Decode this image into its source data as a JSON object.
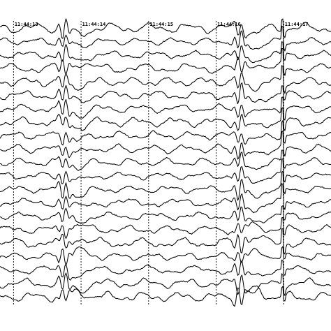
{
  "chart_data": {
    "type": "line",
    "title": "",
    "xlabel": "",
    "ylabel": "",
    "grid": false,
    "legend": "none",
    "time_markers": [
      "11:44:13",
      "11:44:14",
      "11:44:15",
      "11:44:16",
      "11:44:17"
    ],
    "x_range_seconds": [
      12.8,
      17.7
    ],
    "channel_count": 21,
    "trace_color": "#000000",
    "background_color": "#ffffff",
    "events": [
      {
        "time_s": 13.75,
        "description": "spike-wave complex"
      },
      {
        "time_s": 16.35,
        "description": "spike-wave complex"
      },
      {
        "time_s": 16.98,
        "description": "high-amplitude sharp spike"
      }
    ]
  }
}
